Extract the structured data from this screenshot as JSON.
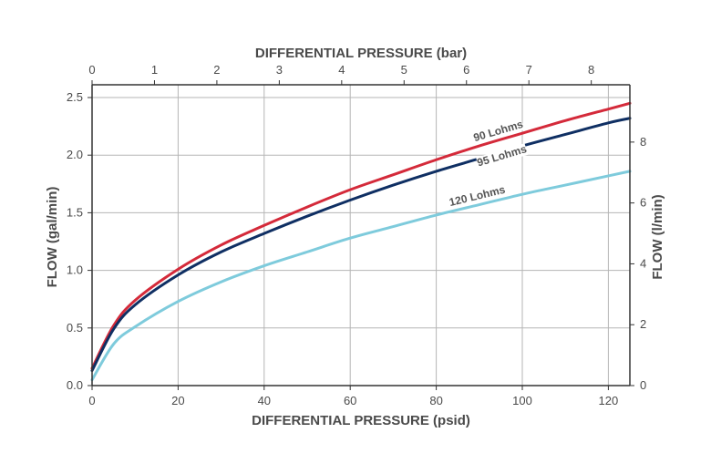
{
  "chart_data": {
    "type": "line",
    "xlabel_bottom": "DIFFERENTIAL PRESSURE (psid)",
    "xlabel_top": "DIFFERENTIAL PRESSURE (bar)",
    "ylabel_left": "FLOW (gal/min)",
    "ylabel_right": "FLOW (l/min)",
    "x_range": [
      0,
      125
    ],
    "y_range": [
      0,
      2.5
    ],
    "x_ticks": [
      0,
      20,
      40,
      60,
      80,
      100,
      120
    ],
    "y_ticks": [
      0.0,
      0.5,
      1.0,
      1.5,
      2.0,
      2.5
    ],
    "y_tick_labels": [
      "0.0",
      "0.5",
      "1.0",
      "1.5",
      "2.0",
      "2.5"
    ],
    "top_ticks": [
      0,
      1,
      2,
      3,
      4,
      5,
      6,
      7,
      8
    ],
    "right_ticks": [
      0,
      2,
      4,
      6,
      8
    ],
    "grid": true,
    "series": [
      {
        "name": "90 Lohms",
        "color": "#d42a3a",
        "x": [
          0,
          5,
          10,
          20,
          30,
          40,
          50,
          60,
          70,
          80,
          90,
          100,
          110,
          120,
          125
        ],
        "y": [
          0.15,
          0.52,
          0.74,
          1.01,
          1.22,
          1.39,
          1.55,
          1.7,
          1.83,
          1.96,
          2.08,
          2.19,
          2.3,
          2.4,
          2.45
        ]
      },
      {
        "name": "95 Lohms",
        "color": "#0f2f63",
        "x": [
          0,
          5,
          10,
          20,
          30,
          40,
          50,
          60,
          70,
          80,
          90,
          100,
          110,
          120,
          125
        ],
        "y": [
          0.13,
          0.49,
          0.7,
          0.96,
          1.16,
          1.32,
          1.47,
          1.61,
          1.74,
          1.86,
          1.97,
          2.08,
          2.18,
          2.28,
          2.32
        ]
      },
      {
        "name": "120 Lohms",
        "color": "#7ecbdc",
        "x": [
          0,
          5,
          10,
          20,
          30,
          40,
          50,
          60,
          70,
          80,
          90,
          100,
          110,
          120,
          125
        ],
        "y": [
          0.05,
          0.36,
          0.51,
          0.73,
          0.9,
          1.04,
          1.16,
          1.28,
          1.38,
          1.48,
          1.57,
          1.66,
          1.74,
          1.82,
          1.86
        ]
      }
    ]
  }
}
